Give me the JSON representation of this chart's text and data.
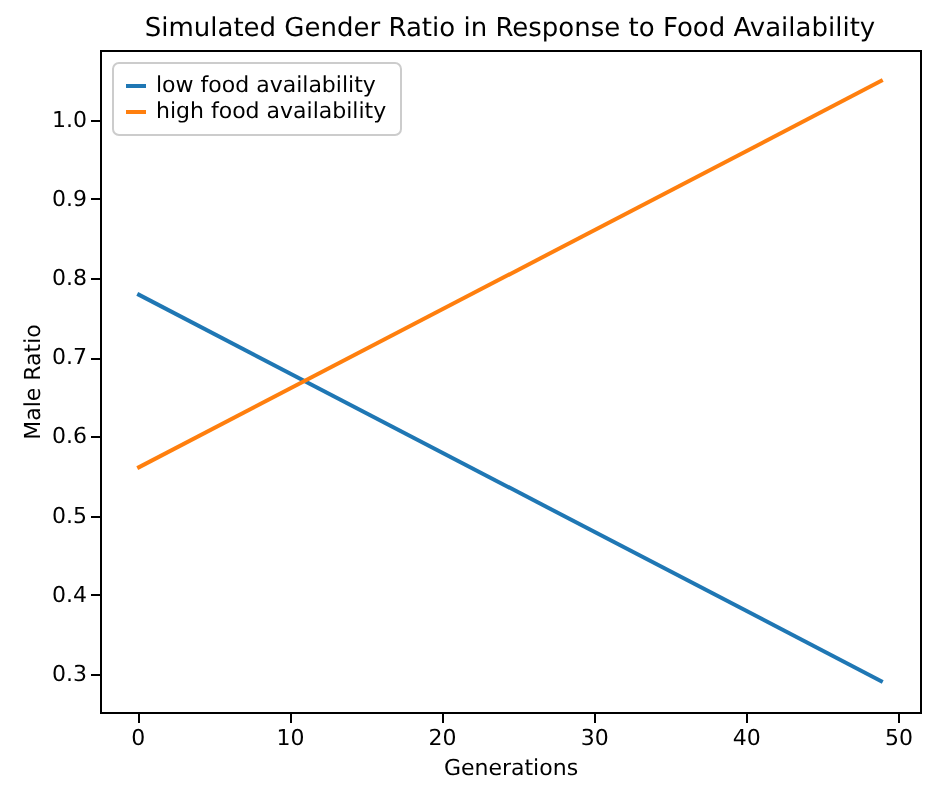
{
  "chart_data": {
    "type": "line",
    "title": "Simulated Gender Ratio in Response to Food Availability",
    "xlabel": "Generations",
    "ylabel": "Male Ratio",
    "x": [
      0,
      49
    ],
    "series": [
      {
        "name": "low food availability",
        "color": "#1f77b4",
        "values": [
          0.78,
          0.29
        ]
      },
      {
        "name": "high food availability",
        "color": "#ff7f0e",
        "values": [
          0.56,
          1.05
        ]
      }
    ],
    "xlim": [
      -2.45,
      51.45
    ],
    "xticks": [
      0,
      10,
      20,
      30,
      40,
      50
    ],
    "ylim": [
      0.252,
      1.088
    ],
    "yticks": [
      0.3,
      0.4,
      0.5,
      0.6,
      0.7,
      0.8,
      0.9,
      {
        "value": 1,
        "label": "1.0"
      }
    ],
    "grid": false,
    "legend": "top left",
    "line_style": "solid",
    "marker": "none"
  }
}
